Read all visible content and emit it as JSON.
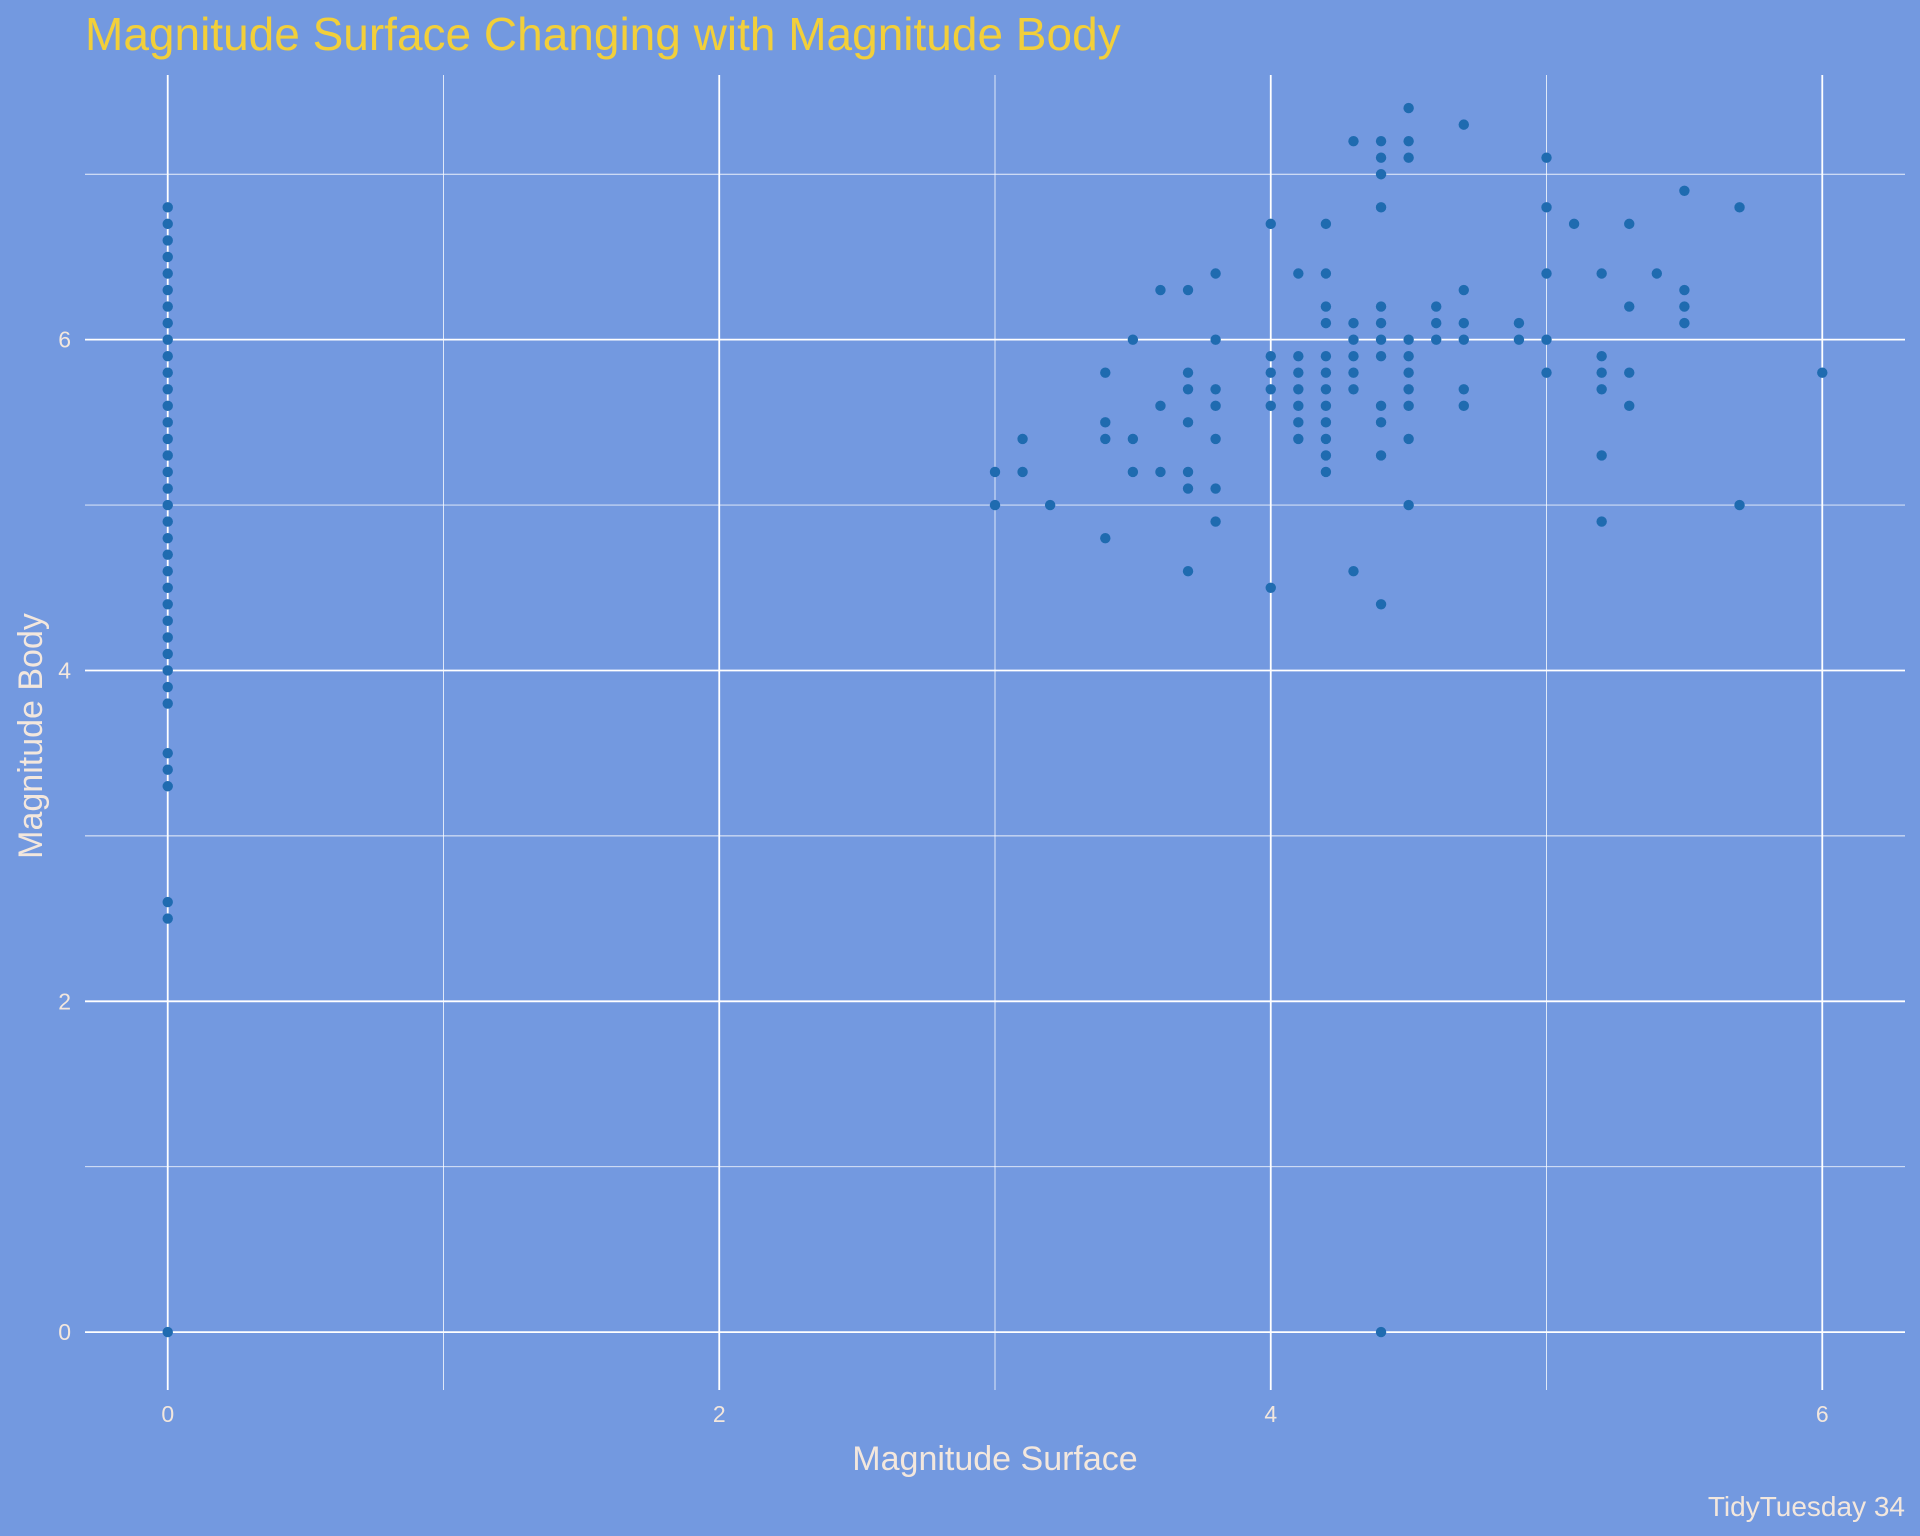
{
  "chart_data": {
    "type": "scatter",
    "title": "Magnitude Surface Changing with Magnitude Body",
    "xlabel": "Magnitude Surface",
    "ylabel": "Magnitude Body",
    "caption": "TidyTuesday 34",
    "xlim": [
      -0.3,
      6.3
    ],
    "ylim": [
      -0.35,
      7.6
    ],
    "x_ticks": [
      0,
      2,
      4,
      6
    ],
    "y_ticks": [
      0,
      2,
      4,
      6
    ],
    "grid": true,
    "point_color": "#1f6bb0",
    "background_color": "#7399e0",
    "title_color": "#f2cf3a",
    "points": [
      [
        0,
        0
      ],
      [
        0,
        2.5
      ],
      [
        0,
        2.6
      ],
      [
        0,
        3.3
      ],
      [
        0,
        3.4
      ],
      [
        0,
        3.5
      ],
      [
        0,
        3.8
      ],
      [
        0,
        3.9
      ],
      [
        0,
        4.0
      ],
      [
        0,
        4.1
      ],
      [
        0,
        4.2
      ],
      [
        0,
        4.3
      ],
      [
        0,
        4.4
      ],
      [
        0,
        4.5
      ],
      [
        0,
        4.6
      ],
      [
        0,
        4.7
      ],
      [
        0,
        4.8
      ],
      [
        0,
        4.9
      ],
      [
        0,
        5.0
      ],
      [
        0,
        5.1
      ],
      [
        0,
        5.2
      ],
      [
        0,
        5.3
      ],
      [
        0,
        5.4
      ],
      [
        0,
        5.5
      ],
      [
        0,
        5.6
      ],
      [
        0,
        5.7
      ],
      [
        0,
        5.8
      ],
      [
        0,
        5.9
      ],
      [
        0,
        6.0
      ],
      [
        0,
        6.1
      ],
      [
        0,
        6.2
      ],
      [
        0,
        6.3
      ],
      [
        0,
        6.4
      ],
      [
        0,
        6.5
      ],
      [
        0,
        6.6
      ],
      [
        0,
        6.7
      ],
      [
        0,
        6.8
      ],
      [
        3.0,
        5.0
      ],
      [
        3.0,
        5.2
      ],
      [
        3.1,
        5.2
      ],
      [
        3.1,
        5.4
      ],
      [
        3.2,
        5.0
      ],
      [
        3.4,
        4.8
      ],
      [
        3.4,
        5.4
      ],
      [
        3.4,
        5.5
      ],
      [
        3.4,
        5.8
      ],
      [
        3.5,
        5.2
      ],
      [
        3.5,
        5.4
      ],
      [
        3.5,
        6.0
      ],
      [
        3.6,
        5.2
      ],
      [
        3.6,
        5.6
      ],
      [
        3.6,
        6.3
      ],
      [
        3.7,
        4.6
      ],
      [
        3.7,
        5.1
      ],
      [
        3.7,
        5.2
      ],
      [
        3.7,
        5.5
      ],
      [
        3.7,
        5.7
      ],
      [
        3.7,
        5.8
      ],
      [
        3.7,
        6.3
      ],
      [
        3.8,
        4.9
      ],
      [
        3.8,
        5.1
      ],
      [
        3.8,
        5.4
      ],
      [
        3.8,
        5.6
      ],
      [
        3.8,
        5.7
      ],
      [
        3.8,
        6.0
      ],
      [
        3.8,
        6.4
      ],
      [
        4.0,
        4.5
      ],
      [
        4.0,
        5.6
      ],
      [
        4.0,
        5.7
      ],
      [
        4.0,
        5.8
      ],
      [
        4.0,
        5.9
      ],
      [
        4.0,
        6.7
      ],
      [
        4.1,
        5.4
      ],
      [
        4.1,
        5.5
      ],
      [
        4.1,
        5.6
      ],
      [
        4.1,
        5.7
      ],
      [
        4.1,
        5.8
      ],
      [
        4.1,
        5.9
      ],
      [
        4.1,
        6.4
      ],
      [
        4.2,
        5.2
      ],
      [
        4.2,
        5.3
      ],
      [
        4.2,
        5.4
      ],
      [
        4.2,
        5.5
      ],
      [
        4.2,
        5.6
      ],
      [
        4.2,
        5.7
      ],
      [
        4.2,
        5.8
      ],
      [
        4.2,
        5.9
      ],
      [
        4.2,
        6.1
      ],
      [
        4.2,
        6.2
      ],
      [
        4.2,
        6.4
      ],
      [
        4.2,
        6.7
      ],
      [
        4.3,
        4.6
      ],
      [
        4.3,
        5.7
      ],
      [
        4.3,
        5.8
      ],
      [
        4.3,
        5.9
      ],
      [
        4.3,
        6.0
      ],
      [
        4.3,
        6.1
      ],
      [
        4.3,
        7.2
      ],
      [
        4.4,
        0
      ],
      [
        4.4,
        4.4
      ],
      [
        4.4,
        5.3
      ],
      [
        4.4,
        5.5
      ],
      [
        4.4,
        5.6
      ],
      [
        4.4,
        5.9
      ],
      [
        4.4,
        6.0
      ],
      [
        4.4,
        6.1
      ],
      [
        4.4,
        6.2
      ],
      [
        4.4,
        6.8
      ],
      [
        4.4,
        7.0
      ],
      [
        4.4,
        7.1
      ],
      [
        4.4,
        7.2
      ],
      [
        4.5,
        5.0
      ],
      [
        4.5,
        5.4
      ],
      [
        4.5,
        5.6
      ],
      [
        4.5,
        5.7
      ],
      [
        4.5,
        5.8
      ],
      [
        4.5,
        5.9
      ],
      [
        4.5,
        6.0
      ],
      [
        4.5,
        7.1
      ],
      [
        4.5,
        7.2
      ],
      [
        4.5,
        7.4
      ],
      [
        4.6,
        6.0
      ],
      [
        4.6,
        6.1
      ],
      [
        4.6,
        6.2
      ],
      [
        4.7,
        5.6
      ],
      [
        4.7,
        5.7
      ],
      [
        4.7,
        6.0
      ],
      [
        4.7,
        6.1
      ],
      [
        4.7,
        6.3
      ],
      [
        4.7,
        7.3
      ],
      [
        4.9,
        6.0
      ],
      [
        4.9,
        6.1
      ],
      [
        5.0,
        5.8
      ],
      [
        5.0,
        6.0
      ],
      [
        5.0,
        6.4
      ],
      [
        5.0,
        6.8
      ],
      [
        5.0,
        7.1
      ],
      [
        5.1,
        6.7
      ],
      [
        5.2,
        4.9
      ],
      [
        5.2,
        5.3
      ],
      [
        5.2,
        5.7
      ],
      [
        5.2,
        5.8
      ],
      [
        5.2,
        5.9
      ],
      [
        5.2,
        6.4
      ],
      [
        5.3,
        5.6
      ],
      [
        5.3,
        5.8
      ],
      [
        5.3,
        6.2
      ],
      [
        5.3,
        6.7
      ],
      [
        5.4,
        6.4
      ],
      [
        5.5,
        6.1
      ],
      [
        5.5,
        6.2
      ],
      [
        5.5,
        6.3
      ],
      [
        5.5,
        6.9
      ],
      [
        5.7,
        5.0
      ],
      [
        5.7,
        6.8
      ],
      [
        6.0,
        5.8
      ]
    ]
  }
}
